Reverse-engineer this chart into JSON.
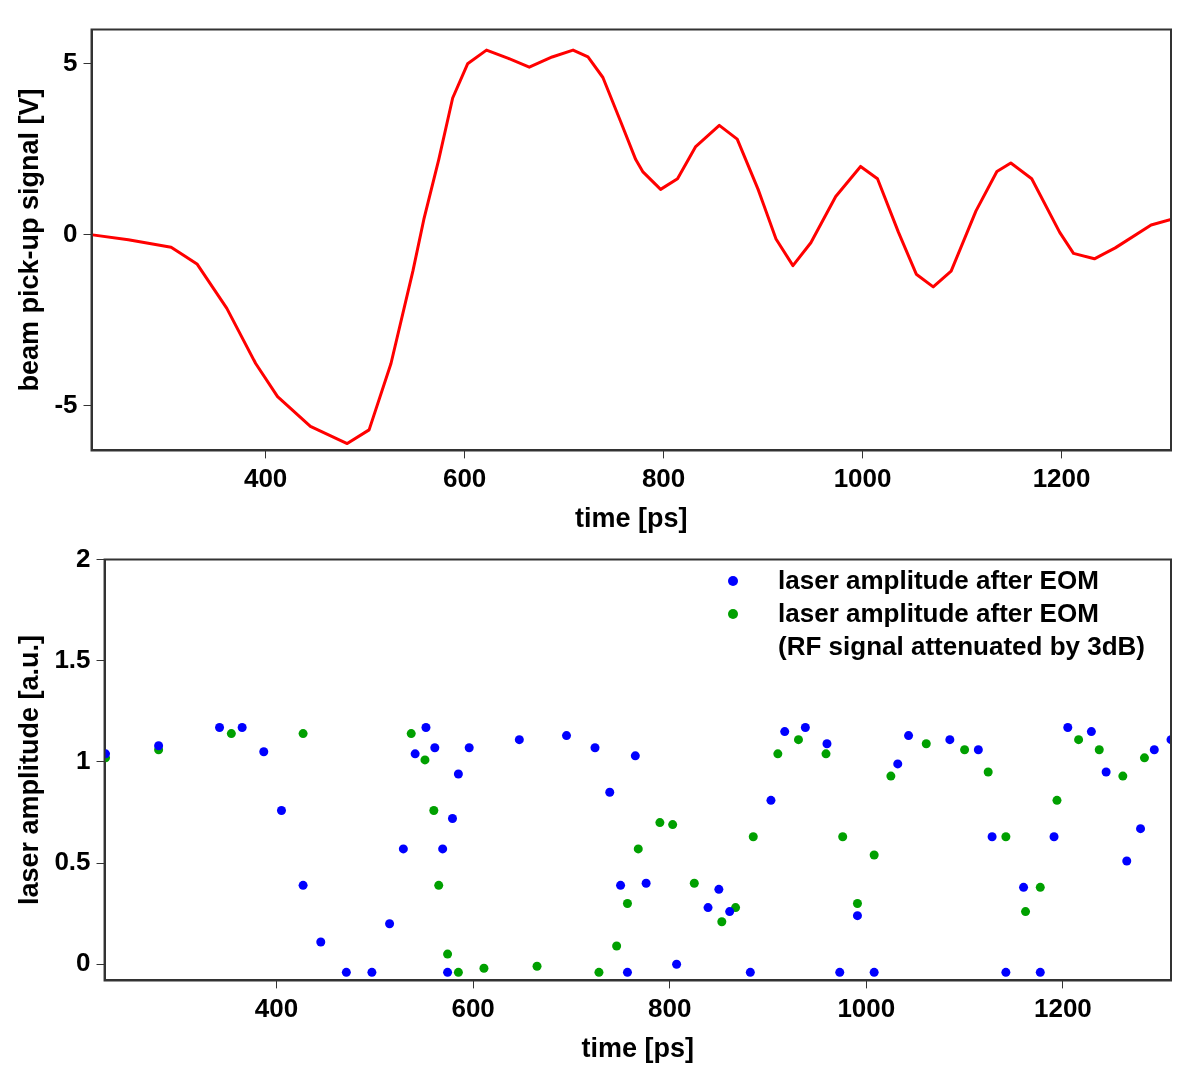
{
  "chart_data": [
    {
      "type": "line",
      "xlabel": "time [ps]",
      "ylabel": "beam pick-up signal [V]",
      "xlim": [
        225,
        1310
      ],
      "xticks": [
        400,
        600,
        800,
        1000,
        1200
      ],
      "ylim": [
        -6.3,
        6
      ],
      "yticks": [
        -5,
        0,
        5
      ],
      "grid": false,
      "legend": false,
      "marker": "none",
      "line_style": "solid",
      "series": [
        {
          "color": "#ff0000",
          "x": [
            226,
            262,
            305,
            331,
            361,
            390,
            412,
            445,
            482,
            504,
            526,
            548,
            559,
            574,
            588,
            603,
            622,
            644,
            665,
            688,
            709,
            724,
            739,
            757,
            772,
            779,
            797,
            814,
            832,
            856,
            874,
            895,
            913,
            930,
            948,
            973,
            998,
            1015,
            1036,
            1054,
            1071,
            1089,
            1114,
            1135,
            1149,
            1170,
            1198,
            1212,
            1233,
            1254,
            1290,
            1310
          ],
          "values": [
            0,
            -0.14,
            -0.36,
            -0.85,
            -2.15,
            -3.76,
            -4.73,
            -5.6,
            -6.1,
            -5.7,
            -3.76,
            -1.06,
            0.45,
            2.2,
            4.0,
            5.0,
            5.4,
            5.16,
            4.9,
            5.2,
            5.4,
            5.2,
            4.6,
            3.3,
            2.2,
            1.85,
            1.33,
            1.64,
            2.57,
            3.2,
            2.8,
            1.33,
            -0.12,
            -0.9,
            -0.23,
            1.12,
            2.0,
            1.64,
            0.08,
            -1.15,
            -1.52,
            -1.06,
            0.7,
            1.85,
            2.1,
            1.64,
            0.08,
            -0.54,
            -0.7,
            -0.38,
            0.29,
            0.45
          ]
        }
      ]
    },
    {
      "type": "scatter",
      "xlabel": "time [ps]",
      "ylabel": "laser amplitude [a.u.]",
      "xlim": [
        225,
        1310
      ],
      "xticks": [
        400,
        600,
        800,
        1000,
        1200
      ],
      "ylim": [
        -0.08,
        2
      ],
      "yticks": [
        0,
        0.5,
        1,
        1.5,
        2
      ],
      "grid": false,
      "legend": "top right",
      "marker": "circle",
      "series": [
        {
          "name": "laser amplitude after EOM",
          "color": "#0000ff",
          "x": [
            226,
            280,
            342,
            365,
            387,
            405,
            427,
            445,
            471,
            497,
            515,
            529,
            541,
            552,
            561,
            569,
            574,
            579,
            585,
            596,
            647,
            695,
            724,
            739,
            750,
            757,
            765,
            776,
            807,
            839,
            850,
            861,
            882,
            903,
            917,
            938,
            960,
            973,
            991,
            1008,
            1032,
            1043,
            1085,
            1114,
            1128,
            1142,
            1160,
            1177,
            1191,
            1205,
            1229,
            1244,
            1265,
            1279,
            1293,
            1310
          ],
          "values": [
            1.04,
            1.08,
            1.17,
            1.17,
            1.05,
            0.76,
            0.39,
            0.11,
            -0.04,
            -0.04,
            0.2,
            0.57,
            1.04,
            1.17,
            1.07,
            0.57,
            -0.04,
            0.72,
            0.94,
            1.07,
            1.11,
            1.13,
            1.07,
            0.85,
            0.39,
            -0.04,
            1.03,
            0.4,
            0,
            0.28,
            0.37,
            0.26,
            -0.04,
            0.81,
            1.15,
            1.17,
            1.09,
            -0.04,
            0.24,
            -0.04,
            0.99,
            1.13,
            1.11,
            1.06,
            0.63,
            -0.04,
            0.38,
            -0.04,
            0.63,
            1.17,
            1.15,
            0.95,
            0.51,
            0.67,
            1.06,
            1.11
          ]
        },
        {
          "name": "laser amplitude after EOM\n(RF signal attenuated by 3dB)",
          "color": "#00a000",
          "x": [
            226,
            280,
            354,
            427,
            537,
            551,
            560,
            565,
            574,
            585,
            611,
            665,
            728,
            746,
            757,
            768,
            790,
            803,
            825,
            853,
            867,
            885,
            910,
            931,
            959,
            976,
            991,
            1008,
            1025,
            1061,
            1100,
            1124,
            1142,
            1162,
            1177,
            1194,
            1216,
            1237,
            1261,
            1283
          ],
          "values": [
            1.02,
            1.06,
            1.14,
            1.14,
            1.14,
            1.01,
            0.76,
            0.39,
            0.05,
            -0.04,
            -0.02,
            -0.01,
            -0.04,
            0.09,
            0.3,
            0.57,
            0.7,
            0.69,
            0.4,
            0.21,
            0.28,
            0.63,
            1.04,
            1.11,
            1.04,
            0.63,
            0.3,
            0.54,
            0.93,
            1.09,
            1.06,
            0.95,
            0.63,
            0.26,
            0.38,
            0.81,
            1.11,
            1.06,
            0.93,
            1.02
          ]
        }
      ]
    }
  ]
}
